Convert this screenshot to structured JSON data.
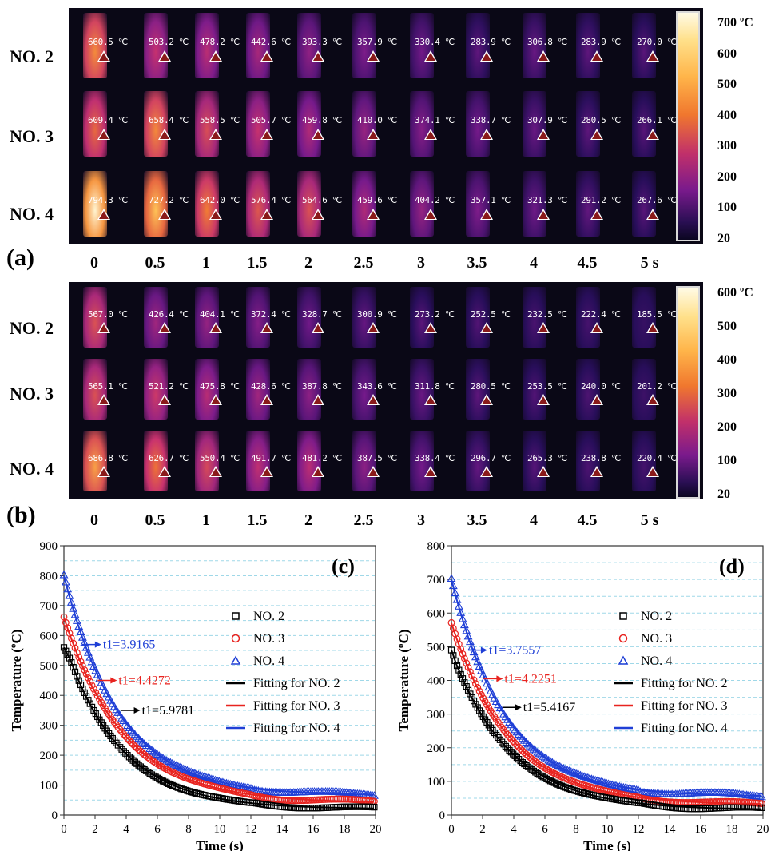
{
  "panel_a": {
    "letter": "(a)",
    "rows": [
      {
        "label": "NO. 2",
        "temps": [
          "660.5 ℃",
          "503.2 ℃",
          "478.2 ℃",
          "442.6 ℃",
          "393.3 ℃",
          "357.9 ℃",
          "330.4 ℃",
          "283.9 ℃",
          "306.8 ℃",
          "283.9 ℃",
          "270.0 ℃"
        ]
      },
      {
        "label": "NO. 3",
        "temps": [
          "609.4 ℃",
          "658.4 ℃",
          "558.5 ℃",
          "505.7 ℃",
          "459.8 ℃",
          "410.0 ℃",
          "374.1 ℃",
          "338.7 ℃",
          "307.9 ℃",
          "280.5 ℃",
          "266.1 ℃"
        ]
      },
      {
        "label": "NO. 4",
        "temps": [
          "794.3 ℃",
          "727.2 ℃",
          "642.0 ℃",
          "576.4 ℃",
          "564.6 ℃",
          "459.6 ℃",
          "404.2 ℃",
          "357.1 ℃",
          "321.3 ℃",
          "291.2 ℃",
          "267.6 ℃"
        ]
      }
    ],
    "times": [
      "0",
      "0.5",
      "1",
      "1.5",
      "2",
      "2.5",
      "3",
      "3.5",
      "4",
      "4.5",
      "5 s"
    ],
    "colorbar": {
      "ticks": [
        "700 ºC",
        "600",
        "500",
        "400",
        "300",
        "200",
        "100",
        "20"
      ]
    }
  },
  "panel_b": {
    "letter": "(b)",
    "rows": [
      {
        "label": "NO. 2",
        "temps": [
          "567.0 ℃",
          "426.4 ℃",
          "404.1 ℃",
          "372.4 ℃",
          "328.7 ℃",
          "300.9 ℃",
          "273.2 ℃",
          "252.5 ℃",
          "232.5 ℃",
          "222.4 ℃",
          "185.5 ℃"
        ]
      },
      {
        "label": "NO. 3",
        "temps": [
          "565.1 ℃",
          "521.2 ℃",
          "475.8 ℃",
          "428.6 ℃",
          "387.8 ℃",
          "343.6 ℃",
          "311.8 ℃",
          "280.5 ℃",
          "253.5 ℃",
          "240.0 ℃",
          "201.2 ℃"
        ]
      },
      {
        "label": "NO. 4",
        "temps": [
          "686.8 ℃",
          "626.7 ℃",
          "550.4 ℃",
          "491.7 ℃",
          "481.2 ℃",
          "387.5 ℃",
          "338.4 ℃",
          "296.7 ℃",
          "265.3 ℃",
          "238.8 ℃",
          "220.4 ℃"
        ]
      }
    ],
    "times": [
      "0",
      "0.5",
      "1",
      "1.5",
      "2",
      "2.5",
      "3",
      "3.5",
      "4",
      "4.5",
      "5 s"
    ],
    "colorbar": {
      "ticks": [
        "600 ºC",
        "500",
        "400",
        "300",
        "200",
        "100",
        "20"
      ]
    }
  },
  "colors": {
    "no2": "#000000",
    "no3": "#e8231f",
    "no4": "#1f3fd6",
    "grid": "#9fd8e8"
  },
  "chart_data": [
    {
      "type": "scatter",
      "panel": "(c)",
      "xlabel": "Time (s)",
      "ylabel": "Temperature (ºC)",
      "xlim": [
        0,
        20
      ],
      "ylim": [
        0,
        900
      ],
      "xticks": [
        0,
        2,
        4,
        6,
        8,
        10,
        12,
        14,
        16,
        18,
        20
      ],
      "yticks": [
        0,
        100,
        200,
        300,
        400,
        500,
        600,
        700,
        800,
        900
      ],
      "grid": true,
      "legend_position": "right",
      "series": [
        {
          "name": "NO. 2",
          "marker": "square",
          "y0": 560,
          "t_break": 0.4,
          "y_at_break": 520,
          "tau": 3.6,
          "y_inf": 20
        },
        {
          "name": "NO. 3",
          "marker": "circle",
          "y0": 660,
          "t_break": 0.0,
          "y_at_break": 660,
          "tau": 3.9,
          "y_inf": 40
        },
        {
          "name": "NO. 4",
          "marker": "triangle",
          "y0": 800,
          "t_break": 0.0,
          "y_at_break": 800,
          "tau": 3.6,
          "y_inf": 65
        }
      ],
      "fits": [
        "Fitting for NO. 2",
        "Fitting for NO. 3",
        "Fitting for NO. 4"
      ],
      "annotations": [
        {
          "text": "t1=3.9165",
          "series": "NO. 4",
          "x": 2.3,
          "y": 570
        },
        {
          "text": "t1=4.4272",
          "series": "NO. 3",
          "x": 3.3,
          "y": 450
        },
        {
          "text": "t1=5.9781",
          "series": "NO. 2",
          "x": 4.8,
          "y": 350
        }
      ]
    },
    {
      "type": "scatter",
      "panel": "(d)",
      "xlabel": "Time (s)",
      "ylabel": "Temperature (ºC)",
      "xlim": [
        0,
        20
      ],
      "ylim": [
        0,
        800
      ],
      "xticks": [
        0,
        2,
        4,
        6,
        8,
        10,
        12,
        14,
        16,
        18,
        20
      ],
      "yticks": [
        0,
        100,
        200,
        300,
        400,
        500,
        600,
        700,
        800
      ],
      "grid": true,
      "legend_position": "right",
      "series": [
        {
          "name": "NO. 2",
          "marker": "square",
          "y0": 490,
          "t_break": 0.3,
          "y_at_break": 450,
          "tau": 3.8,
          "y_inf": 15
        },
        {
          "name": "NO. 3",
          "marker": "circle",
          "y0": 570,
          "t_break": 0.0,
          "y_at_break": 570,
          "tau": 3.8,
          "y_inf": 30
        },
        {
          "name": "NO. 4",
          "marker": "triangle",
          "y0": 700,
          "t_break": 0.0,
          "y_at_break": 700,
          "tau": 3.5,
          "y_inf": 55
        }
      ],
      "fits": [
        "Fitting for NO. 2",
        "Fitting for NO. 3",
        "Fitting for NO. 4"
      ],
      "annotations": [
        {
          "text": "t1=3.7557",
          "series": "NO. 4",
          "x": 2.2,
          "y": 490
        },
        {
          "text": "t1=4.2251",
          "series": "NO. 3",
          "x": 3.2,
          "y": 405
        },
        {
          "text": "t1=5.4167",
          "series": "NO. 2",
          "x": 4.4,
          "y": 320
        }
      ]
    }
  ]
}
